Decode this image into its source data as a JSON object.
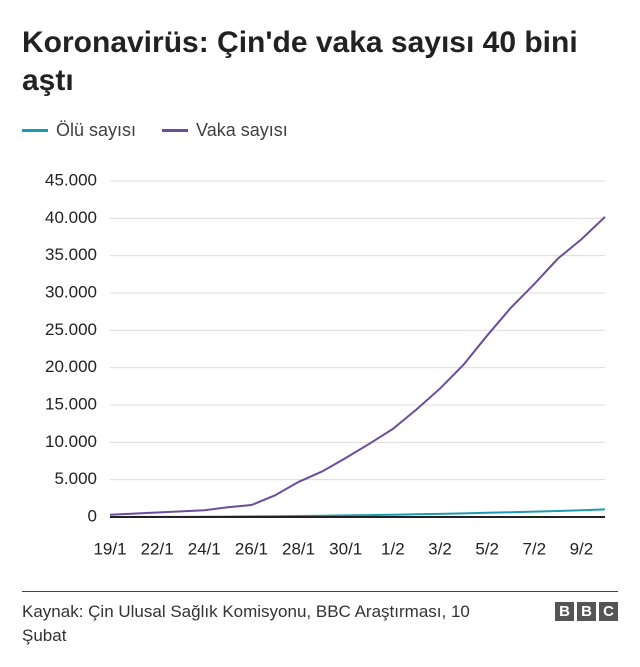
{
  "chart_data": {
    "type": "line",
    "title": "Koronavirüs: Çin'de vaka sayısı 40 bini aştı",
    "categories": [
      "19/1",
      null,
      "22/1",
      null,
      "24/1",
      null,
      "26/1",
      null,
      "28/1",
      null,
      "30/1",
      null,
      "1/2",
      null,
      "3/2",
      null,
      "5/2",
      null,
      "7/2",
      null,
      "9/2",
      null
    ],
    "series": [
      {
        "name": "Ölü sayısı",
        "color": "#1d9bb0",
        "values": [
          6,
          9,
          17,
          25,
          41,
          56,
          80,
          106,
          132,
          170,
          213,
          259,
          304,
          361,
          425,
          490,
          563,
          636,
          722,
          811,
          908,
          1016
        ]
      },
      {
        "name": "Vaka sayısı",
        "color": "#6b4e9b",
        "values": [
          300,
          450,
          600,
          750,
          900,
          1300,
          1600,
          2900,
          4700,
          6100,
          7900,
          9800,
          11800,
          14400,
          17200,
          20400,
          24300,
          28000,
          31200,
          34600,
          37200,
          40200
        ]
      }
    ],
    "ylim": [
      0,
      45000
    ],
    "yticks": [
      0,
      {
        "value": 5000,
        "label": "5.000"
      },
      {
        "value": 10000,
        "label": "10.000"
      },
      {
        "value": 15000,
        "label": "15.000"
      },
      {
        "value": 20000,
        "label": "20.000"
      },
      {
        "value": 25000,
        "label": "25.000"
      },
      {
        "value": 30000,
        "label": "30.000"
      },
      {
        "value": 35000,
        "label": "35.000"
      },
      {
        "value": 40000,
        "label": "40.000"
      },
      {
        "value": 45000,
        "label": "45.000"
      }
    ],
    "grid": true,
    "legend": "top-left",
    "source": "Kaynak: Çin Ulusal Sağlık Komisyonu, BBC Araştırması, 10 Şubat",
    "logo": [
      "B",
      "B",
      "C"
    ]
  }
}
